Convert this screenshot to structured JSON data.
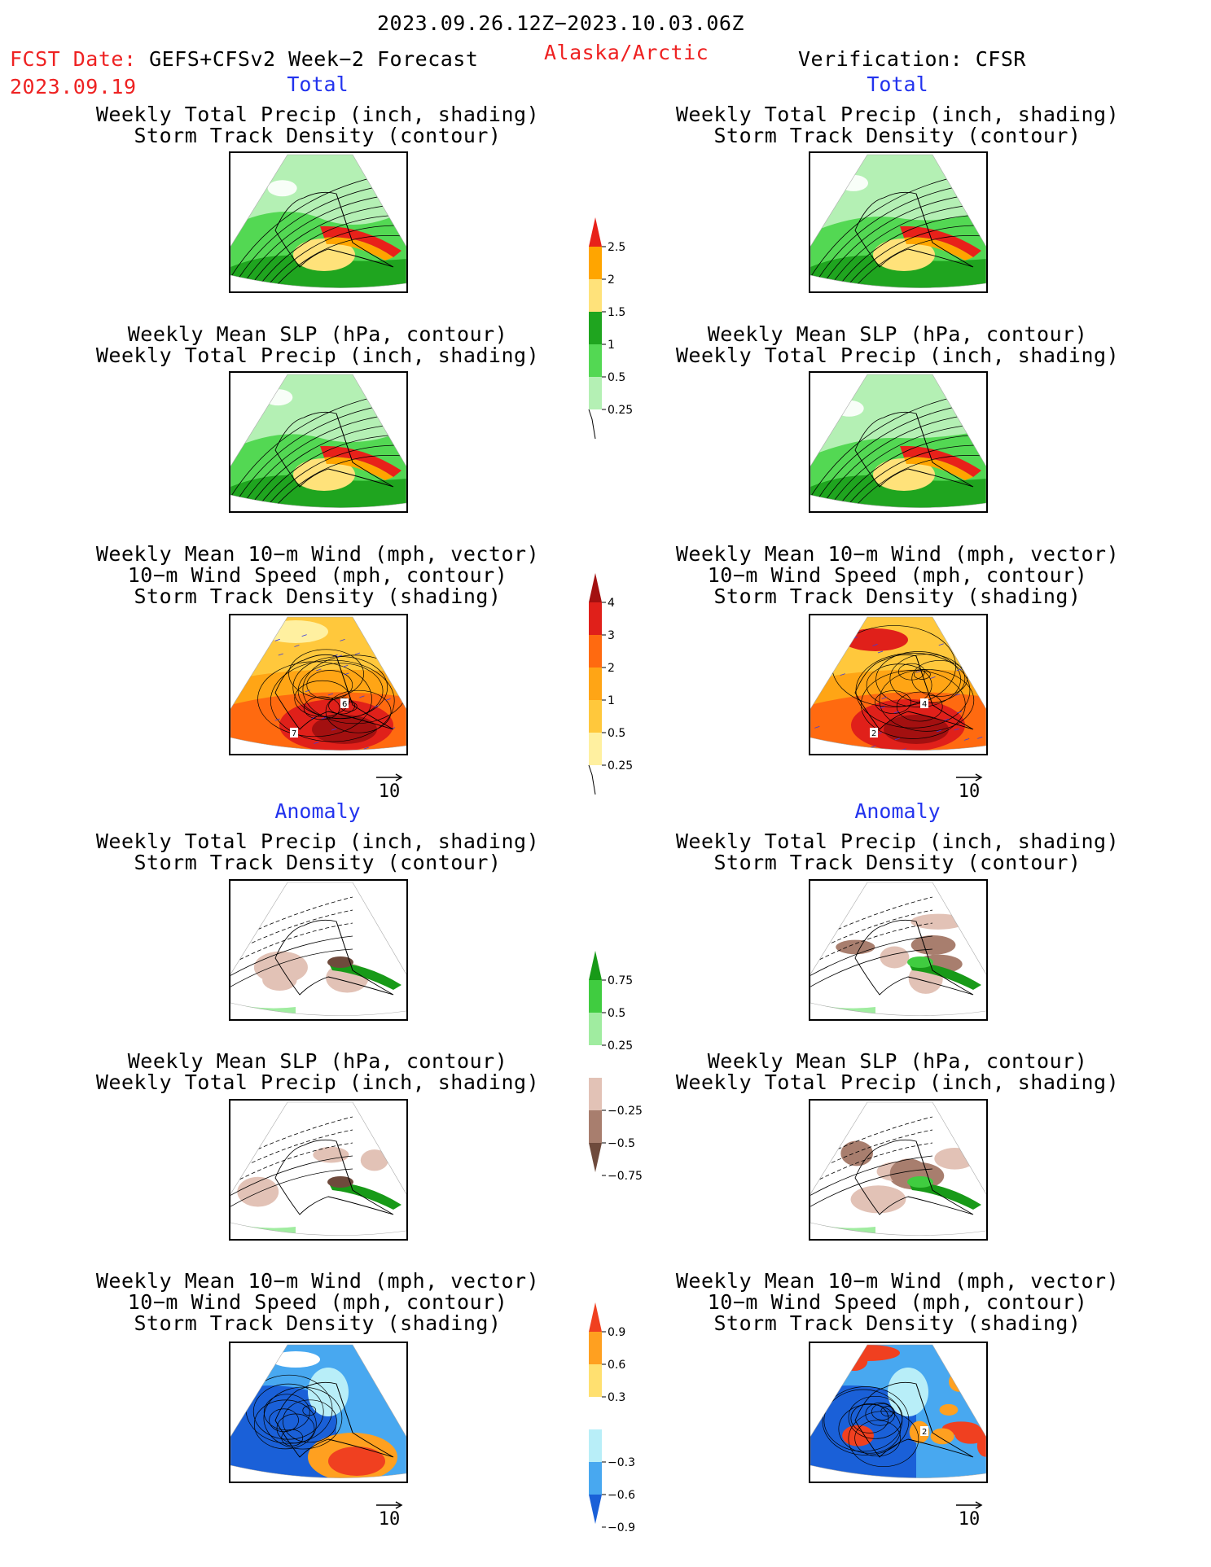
{
  "header": {
    "period": "2023.09.26.12Z−2023.10.03.06Z",
    "fcst_label": "FCST Date:",
    "fcst_model": "GEFS+CFSv2 Week−2 Forecast",
    "fcst_date": "2023.09.19",
    "region": "Alaska/Arctic",
    "verification": "Verification: CFSR"
  },
  "sections": {
    "total_left": "Total",
    "total_right": "Total",
    "anomaly_left": "Anomaly",
    "anomaly_right": "Anomaly"
  },
  "titles": {
    "precip_track": [
      "Weekly Total Precip (inch, shading)",
      "Storm Track Density (contour)"
    ],
    "slp_precip": [
      "Weekly Mean SLP (hPa, contour)",
      "Weekly Total Precip (inch, shading)"
    ],
    "wind_track": [
      "Weekly Mean 10−m Wind (mph, vector)",
      "10−m Wind Speed (mph, contour)",
      "Storm Track Density (shading)"
    ]
  },
  "vector_ref": "10",
  "colorbars": {
    "precip_total": {
      "labels": [
        "2.5",
        "2",
        "1.5",
        "1",
        "0.5",
        "0.25"
      ],
      "colors": [
        "#e8211a",
        "#ffa500",
        "#ffe27a",
        "#1fa51f",
        "#53d853",
        "#b4f0b4"
      ]
    },
    "track_total": {
      "labels": [
        "4",
        "3",
        "2",
        "1",
        "0.5",
        "0.25"
      ],
      "colors": [
        "#a31010",
        "#e0201a",
        "#ff6a10",
        "#ffa515",
        "#ffc83c",
        "#fff0a0"
      ]
    },
    "precip_anom": {
      "labels": [
        "0.75",
        "0.5",
        "0.25",
        "−0.25",
        "−0.5",
        "−0.75"
      ],
      "colors": [
        "#189a18",
        "#40cc40",
        "#a0eca0",
        "#ffffff",
        "#e2c2b6",
        "#a87e6e",
        "#6e4a3c"
      ]
    },
    "track_anom": {
      "labels": [
        "0.9",
        "0.6",
        "0.3",
        "−0.3",
        "−0.6",
        "−0.9"
      ],
      "colors": [
        "#f04020",
        "#ffa020",
        "#ffe070",
        "#ffffff",
        "#b8eef8",
        "#48a8f0",
        "#1a60d8"
      ]
    }
  },
  "panel_labels": {
    "wind_total_fcst": [
      "6",
      "7"
    ],
    "wind_total_verif": [
      "4",
      "2"
    ],
    "wind_anom_verif": [
      "2"
    ]
  }
}
